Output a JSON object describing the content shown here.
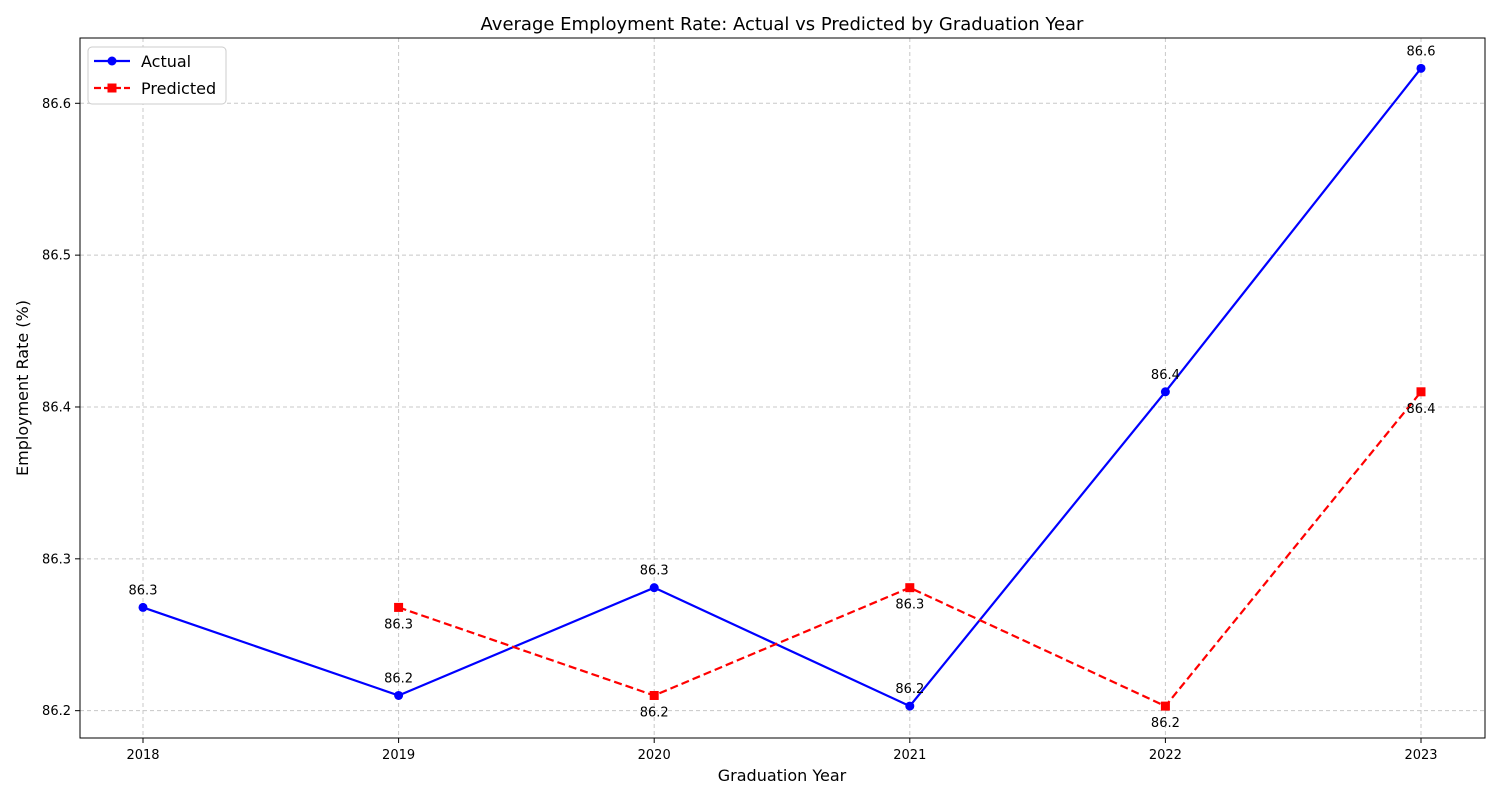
{
  "chart_data": {
    "type": "line",
    "title": "Average Employment Rate: Actual vs Predicted by Graduation Year",
    "xlabel": "Graduation Year",
    "ylabel": "Employment Rate (%)",
    "ylim": [
      86.182,
      86.643
    ],
    "yticks": [
      86.2,
      86.3,
      86.4,
      86.5,
      86.6
    ],
    "ytick_labels": [
      "86.2",
      "86.3",
      "86.4",
      "86.5",
      "86.6"
    ],
    "grid": true,
    "legend_position": "upper-left",
    "series": [
      {
        "name": "Actual",
        "color": "#0000ff",
        "linestyle": "solid",
        "marker": "circle",
        "label_position": "above",
        "points": [
          {
            "x": "2018",
            "y": 86.268,
            "label": "86.3"
          },
          {
            "x": "2019",
            "y": 86.21,
            "label": "86.2"
          },
          {
            "x": "2020",
            "y": 86.281,
            "label": "86.3"
          },
          {
            "x": "2021",
            "y": 86.203,
            "label": "86.2"
          },
          {
            "x": "2022",
            "y": 86.41,
            "label": "86.4"
          },
          {
            "x": "2023",
            "y": 86.623,
            "label": "86.6"
          }
        ]
      },
      {
        "name": "Predicted",
        "color": "#ff0000",
        "linestyle": "dashed",
        "marker": "square",
        "label_position": "below",
        "points": [
          {
            "x": "2019",
            "y": 86.268,
            "label": "86.3"
          },
          {
            "x": "2020",
            "y": 86.21,
            "label": "86.2"
          },
          {
            "x": "2021",
            "y": 86.281,
            "label": "86.3"
          },
          {
            "x": "2022",
            "y": 86.203,
            "label": "86.2"
          },
          {
            "x": "2023",
            "y": 86.41,
            "label": "86.4"
          }
        ]
      }
    ],
    "categories": [
      "2018",
      "2019",
      "2020",
      "2021",
      "2022",
      "2023"
    ]
  }
}
